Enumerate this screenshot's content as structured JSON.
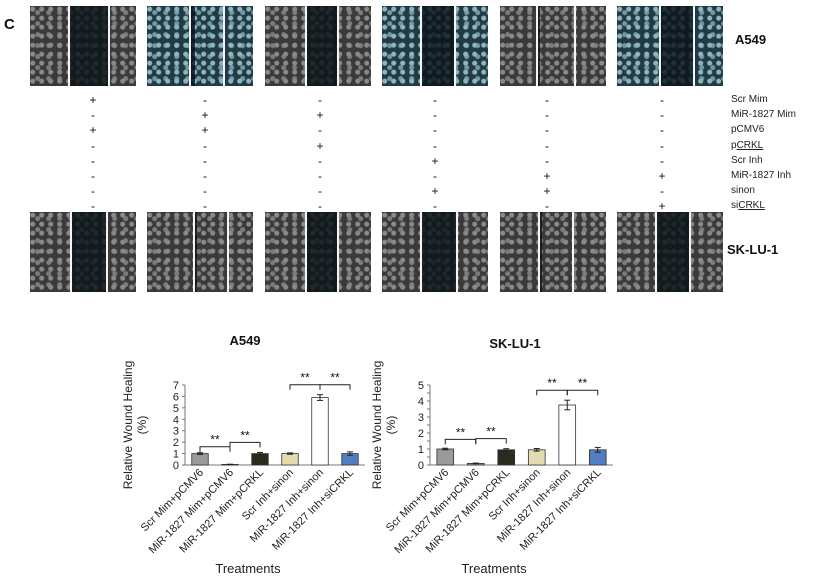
{
  "figure": {
    "panel_letter": "C",
    "top_cell_line": "A549",
    "bottom_cell_line": "SK-LU-1",
    "conditions": [
      {
        "label": "Scr Mim",
        "marks": [
          "+",
          "-",
          "-",
          "-",
          "-",
          "-"
        ]
      },
      {
        "label": "MiR-1827 Mim",
        "marks": [
          "-",
          "+",
          "+",
          "-",
          "-",
          "-"
        ]
      },
      {
        "label": "pCMV6",
        "marks": [
          "+",
          "+",
          "-",
          "-",
          "-",
          "-"
        ]
      },
      {
        "label": "pCRKL",
        "label_prefix": "p",
        "label_underlined": "CRKL",
        "marks": [
          "-",
          "-",
          "+",
          "-",
          "-",
          "-"
        ]
      },
      {
        "label": "Scr Inh",
        "marks": [
          "-",
          "-",
          "-",
          "+",
          "-",
          "-"
        ]
      },
      {
        "label": "MiR-1827 Inh",
        "marks": [
          "-",
          "-",
          "-",
          "-",
          "+",
          "+"
        ]
      },
      {
        "label": "sinon",
        "marks": [
          "-",
          "-",
          "-",
          "+",
          "+",
          "-"
        ]
      },
      {
        "label": "siCRKL",
        "label_prefix": "si",
        "label_underlined": "CRKL",
        "marks": [
          "-",
          "-",
          "-",
          "-",
          "-",
          "+"
        ]
      }
    ]
  },
  "chart_data": [
    {
      "type": "bar",
      "title": "A549",
      "xlabel": "Treatments",
      "ylabel": "Relative Wound Healing (%)",
      "ylim": [
        0,
        7
      ],
      "yticks": [
        0,
        1,
        2,
        3,
        4,
        5,
        6,
        7
      ],
      "categories": [
        "Scr Mim+pCMV6",
        "MiR-1827 Mim+pCMV6",
        "MiR-1827 Mim+pCRKL",
        "Scr Inh+sinon",
        "MiR-1827 Inh+sinon",
        "MiR-1827 Inh+siCRKL"
      ],
      "values": [
        1.0,
        0.05,
        1.0,
        1.0,
        5.9,
        1.0
      ],
      "errors": [
        0.08,
        0.02,
        0.1,
        0.06,
        0.25,
        0.15
      ],
      "colors": [
        "#9a9a9a",
        "#9a9a9a",
        "#2b2b1e",
        "#e4dcb0",
        "#ffffff",
        "#4f7fc0"
      ],
      "significance": [
        {
          "from": 0,
          "to": 1,
          "label": "**"
        },
        {
          "from": 1,
          "to": 2,
          "label": "**"
        },
        {
          "from": 3,
          "to": 4,
          "label": "**"
        },
        {
          "from": 4,
          "to": 5,
          "label": "**"
        }
      ]
    },
    {
      "type": "bar",
      "title": "SK-LU-1",
      "xlabel": "Treatments",
      "ylabel": "Relative Wound Healing (%)",
      "ylim": [
        0,
        5
      ],
      "yticks": [
        0,
        0.5,
        1,
        1.5,
        2,
        2.5,
        3,
        3.5,
        4,
        4.5,
        5
      ],
      "ytick_labels": [
        "0",
        "",
        "1",
        "",
        "2",
        "",
        "3",
        "",
        "4",
        "",
        "5"
      ],
      "categories": [
        "Scr Mim+pCMV6",
        "MiR-1827 Mim+pCMV6",
        "MiR-1827 Mim+pCRKL",
        "Scr Inh+sinon",
        "MiR-1827 Inh+sinon",
        "MiR-1827 Inh+siCRKL"
      ],
      "values": [
        1.0,
        0.1,
        0.95,
        0.95,
        3.75,
        0.95
      ],
      "errors": [
        0.05,
        0.02,
        0.07,
        0.08,
        0.3,
        0.15
      ],
      "colors": [
        "#9a9a9a",
        "#9a9a9a",
        "#2b2b1e",
        "#e4dcb0",
        "#ffffff",
        "#4f7fc0"
      ],
      "significance": [
        {
          "from": 0,
          "to": 1,
          "label": "**"
        },
        {
          "from": 1,
          "to": 2,
          "label": "**"
        },
        {
          "from": 3,
          "to": 4,
          "label": "**"
        },
        {
          "from": 4,
          "to": 5,
          "label": "**"
        }
      ]
    }
  ]
}
